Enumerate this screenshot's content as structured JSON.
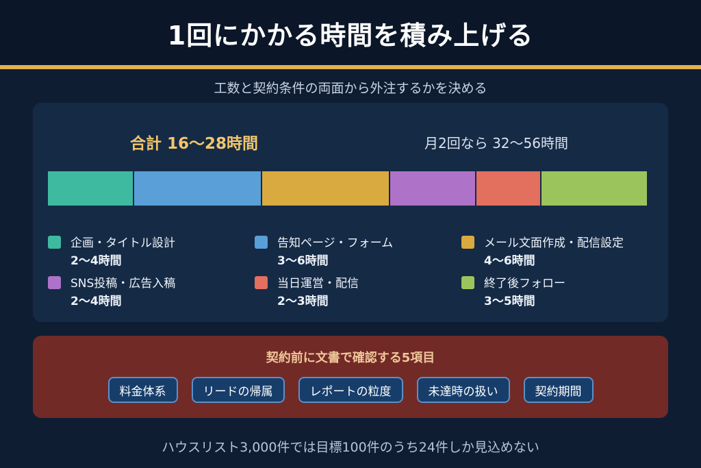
{
  "header": {
    "title": "1回にかかる時間を積み上げる"
  },
  "subtitle": "工数と契約条件の両面から外注するかを決める",
  "summary": {
    "total": "合計 16〜28時間",
    "monthly": "月2回なら 32〜56時間"
  },
  "tasks": [
    {
      "name": "企画・タイトル設計",
      "hours": "2〜4時間",
      "min_hours": 2,
      "max_hours": 4,
      "color": "#3dbaa0"
    },
    {
      "name": "告知ページ・フォーム",
      "hours": "3〜6時間",
      "min_hours": 3,
      "max_hours": 6,
      "color": "#5a9fd8"
    },
    {
      "name": "メール文面作成・配信設定",
      "hours": "4〜6時間",
      "min_hours": 4,
      "max_hours": 6,
      "color": "#d9aa40"
    },
    {
      "name": "SNS投稿・広告入稿",
      "hours": "2〜4時間",
      "min_hours": 2,
      "max_hours": 4,
      "color": "#ae72c8"
    },
    {
      "name": "当日運営・配信",
      "hours": "2〜3時間",
      "min_hours": 2,
      "max_hours": 3,
      "color": "#e36f5f"
    },
    {
      "name": "終了後フォロー",
      "hours": "3〜5時間",
      "min_hours": 3,
      "max_hours": 5,
      "color": "#9bc55c"
    }
  ],
  "contract": {
    "title": "契約前に文書で確認する5項目",
    "items": [
      "料金体系",
      "リードの帰属",
      "レポートの粒度",
      "未達時の扱い",
      "契約期間"
    ]
  },
  "footer": "ハウスリスト3,000件では目標100件のうち24件しか見込めない"
}
